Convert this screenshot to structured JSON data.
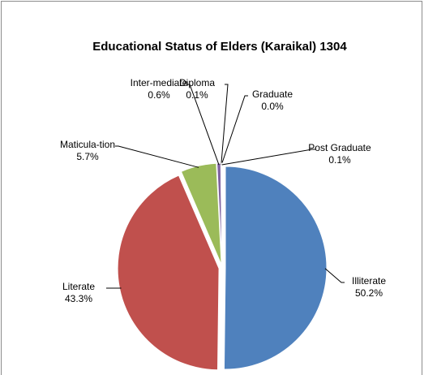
{
  "chart_data": {
    "type": "pie",
    "title": "Educational Status of Elders (Karaikal) 1304",
    "categories": [
      "Illiterate",
      "Literate",
      "Maticula-tion",
      "Inter-mediate",
      "Diploma",
      "Graduate",
      "Post Graduate"
    ],
    "values": [
      50.2,
      43.3,
      5.7,
      0.6,
      0.1,
      0.0,
      0.1
    ],
    "value_labels": [
      "50.2%",
      "43.3%",
      "5.7%",
      "0.6%",
      "0.1%",
      "0.0%",
      "0.1%"
    ],
    "colors": [
      "#4f81bd",
      "#c0504d",
      "#9bbb59",
      "#8064a2",
      "#4bacc6",
      "#f79646",
      "#2c4d75"
    ]
  }
}
